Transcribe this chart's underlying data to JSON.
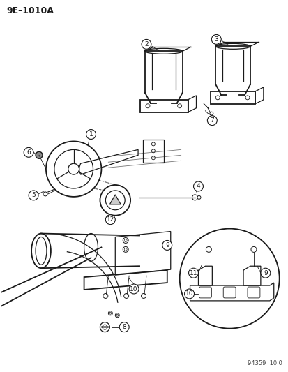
{
  "title": "9E–1010A",
  "footer": "94359  10I0",
  "background_color": "#ffffff",
  "line_color": "#1a1a1a",
  "fig_width": 4.14,
  "fig_height": 5.33,
  "dpi": 100
}
